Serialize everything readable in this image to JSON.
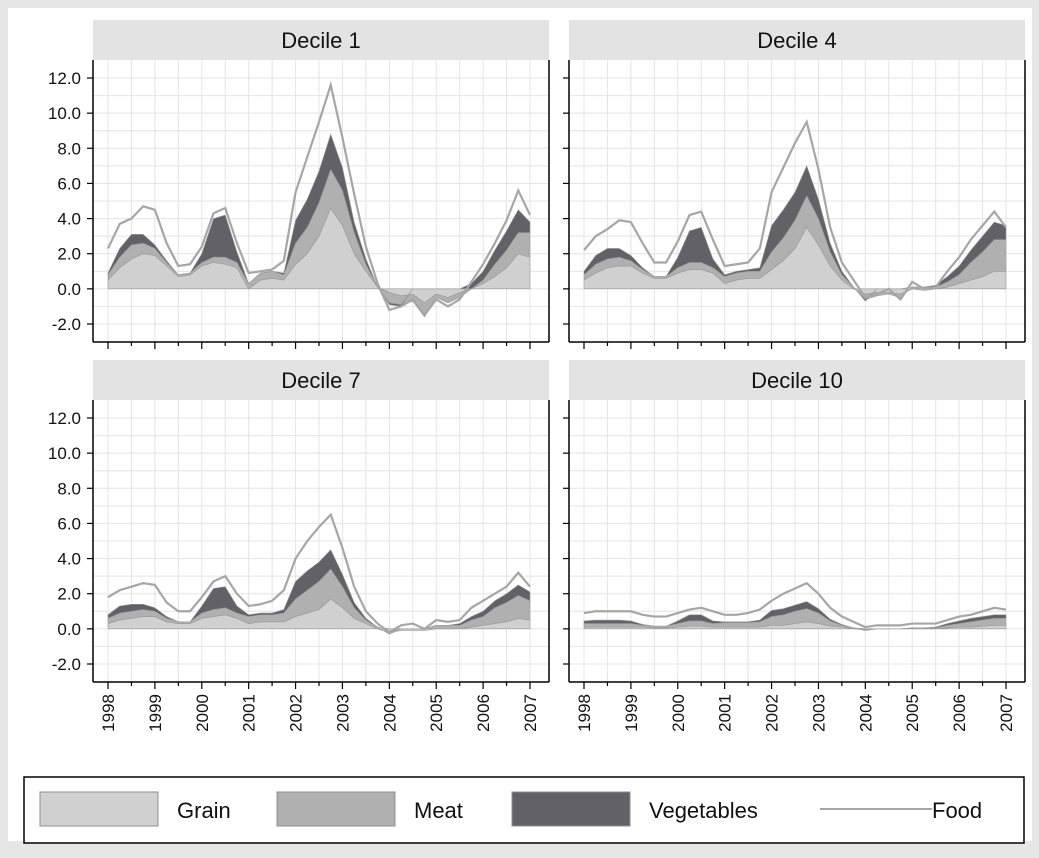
{
  "chart_data": {
    "type": "area",
    "layout": "2x2 small multiples",
    "x": [
      1998.0,
      1998.25,
      1998.5,
      1998.75,
      1999.0,
      1999.25,
      1999.5,
      1999.75,
      2000.0,
      2000.25,
      2000.5,
      2000.75,
      2001.0,
      2001.25,
      2001.5,
      2001.75,
      2002.0,
      2002.25,
      2002.5,
      2002.75,
      2003.0,
      2003.25,
      2003.5,
      2003.75,
      2004.0,
      2004.25,
      2004.5,
      2004.75,
      2005.0,
      2005.25,
      2005.5,
      2005.75,
      2006.0,
      2006.25,
      2006.5,
      2006.75,
      2007.0
    ],
    "xlim": [
      1998,
      2007
    ],
    "ylim": [
      -2,
      12
    ],
    "x_tick_labels": [
      "1998",
      "1999",
      "2000",
      "2001",
      "2002",
      "2003",
      "2004",
      "2005",
      "2006",
      "2007"
    ],
    "y_tick_labels": [
      "12.0",
      "10.0",
      "8.0",
      "6.0",
      "4.0",
      "2.0",
      "0.0",
      "-2.0"
    ],
    "grid": true,
    "legend_position": "bottom",
    "legend": [
      {
        "name": "Grain",
        "kind": "area",
        "color": "#d0d0d0"
      },
      {
        "name": "Meat",
        "kind": "area",
        "color": "#b0b0b0"
      },
      {
        "name": "Vegetables",
        "kind": "area",
        "color": "#626266"
      },
      {
        "name": "Food",
        "kind": "line",
        "color": "#a6a6a6"
      }
    ],
    "panels": [
      {
        "title": "Decile 1",
        "series": [
          {
            "name": "Grain",
            "values": [
              0.5,
              1.2,
              1.7,
              2.0,
              1.9,
              1.3,
              0.7,
              0.8,
              1.3,
              1.5,
              1.4,
              1.2,
              0.0,
              0.5,
              0.6,
              0.5,
              1.4,
              2.0,
              3.0,
              4.6,
              3.6,
              2.0,
              1.0,
              0.1,
              -0.2,
              -0.4,
              -0.3,
              -0.8,
              -0.3,
              -0.5,
              -0.2,
              0.0,
              0.3,
              0.7,
              1.2,
              2.0,
              1.8
            ]
          },
          {
            "name": "Meat",
            "values": [
              0.3,
              0.6,
              0.8,
              0.6,
              0.4,
              0.2,
              0.1,
              0.1,
              0.2,
              0.3,
              0.4,
              0.3,
              0.3,
              0.4,
              0.4,
              0.3,
              1.2,
              1.5,
              1.9,
              2.2,
              2.0,
              1.2,
              0.4,
              0.0,
              -0.6,
              -0.5,
              -0.4,
              -0.8,
              -0.2,
              -0.3,
              -0.3,
              0.0,
              0.2,
              0.7,
              1.0,
              1.2,
              1.4
            ]
          },
          {
            "name": "Vegetables",
            "values": [
              0.1,
              0.5,
              0.6,
              0.5,
              0.2,
              0.1,
              0.0,
              0.0,
              0.5,
              2.2,
              2.4,
              0.6,
              0.0,
              0.0,
              0.0,
              0.1,
              1.3,
              1.6,
              1.8,
              2.0,
              1.3,
              0.6,
              0.3,
              0.0,
              -0.1,
              -0.1,
              0.0,
              0.0,
              0.0,
              0.0,
              0.0,
              0.3,
              0.5,
              0.8,
              1.1,
              1.3,
              0.6
            ]
          },
          {
            "name": "Food",
            "values": [
              2.3,
              3.7,
              4.0,
              4.7,
              4.5,
              2.6,
              1.3,
              1.4,
              2.4,
              4.3,
              4.6,
              2.6,
              0.9,
              1.0,
              1.1,
              1.6,
              5.5,
              7.5,
              9.5,
              11.6,
              8.6,
              5.4,
              2.4,
              0.3,
              -1.2,
              -1.0,
              -0.6,
              -1.5,
              -0.6,
              -1.0,
              -0.6,
              0.4,
              1.4,
              2.6,
              3.9,
              5.6,
              4.2
            ]
          }
        ]
      },
      {
        "title": "Decile 4",
        "series": [
          {
            "name": "Grain",
            "values": [
              0.5,
              0.9,
              1.2,
              1.3,
              1.3,
              0.9,
              0.6,
              0.6,
              0.9,
              1.1,
              1.1,
              0.9,
              0.3,
              0.5,
              0.6,
              0.6,
              1.1,
              1.6,
              2.3,
              3.5,
              2.5,
              1.3,
              0.5,
              0.0,
              -0.3,
              -0.2,
              -0.2,
              -0.3,
              0.0,
              -0.1,
              0.0,
              0.1,
              0.3,
              0.5,
              0.7,
              1.0,
              1.0
            ]
          },
          {
            "name": "Meat",
            "values": [
              0.3,
              0.5,
              0.5,
              0.5,
              0.3,
              0.2,
              0.1,
              0.1,
              0.3,
              0.4,
              0.4,
              0.3,
              0.4,
              0.4,
              0.4,
              0.4,
              1.0,
              1.3,
              1.6,
              1.8,
              1.5,
              0.8,
              0.3,
              0.1,
              -0.3,
              -0.2,
              -0.1,
              -0.2,
              0.1,
              0.1,
              0.1,
              0.3,
              0.5,
              1.0,
              1.4,
              1.8,
              1.8
            ]
          },
          {
            "name": "Vegetables",
            "values": [
              0.2,
              0.5,
              0.6,
              0.5,
              0.3,
              0.1,
              0.0,
              0.0,
              0.6,
              1.8,
              2.0,
              0.5,
              0.1,
              0.1,
              0.1,
              0.2,
              1.5,
              1.6,
              1.6,
              1.7,
              1.1,
              0.5,
              0.2,
              0.0,
              -0.1,
              0.0,
              0.0,
              0.0,
              0.0,
              0.0,
              0.1,
              0.3,
              0.5,
              0.7,
              0.9,
              1.0,
              0.8
            ]
          },
          {
            "name": "Food",
            "values": [
              2.2,
              3.0,
              3.4,
              3.9,
              3.8,
              2.6,
              1.5,
              1.5,
              2.7,
              4.2,
              4.4,
              2.8,
              1.3,
              1.4,
              1.5,
              2.3,
              5.5,
              6.9,
              8.3,
              9.5,
              6.8,
              3.5,
              1.5,
              0.5,
              -0.5,
              -0.3,
              0.0,
              -0.6,
              0.4,
              0.0,
              0.1,
              1.0,
              1.8,
              2.8,
              3.6,
              4.4,
              3.5
            ]
          }
        ]
      },
      {
        "title": "Decile 7",
        "series": [
          {
            "name": "Grain",
            "values": [
              0.3,
              0.5,
              0.6,
              0.7,
              0.7,
              0.4,
              0.3,
              0.3,
              0.6,
              0.7,
              0.8,
              0.6,
              0.3,
              0.4,
              0.4,
              0.4,
              0.7,
              0.9,
              1.1,
              1.7,
              1.2,
              0.6,
              0.3,
              0.0,
              -0.2,
              -0.1,
              -0.1,
              -0.1,
              0.0,
              0.0,
              0.0,
              0.1,
              0.2,
              0.3,
              0.4,
              0.6,
              0.5
            ]
          },
          {
            "name": "Meat",
            "values": [
              0.3,
              0.4,
              0.4,
              0.4,
              0.3,
              0.2,
              0.1,
              0.1,
              0.3,
              0.4,
              0.4,
              0.3,
              0.4,
              0.4,
              0.4,
              0.5,
              1.0,
              1.3,
              1.6,
              1.7,
              1.2,
              0.6,
              0.2,
              0.1,
              -0.1,
              0.0,
              0.0,
              0.0,
              0.2,
              0.2,
              0.2,
              0.4,
              0.5,
              0.9,
              1.1,
              1.3,
              1.1
            ]
          },
          {
            "name": "Vegetables",
            "values": [
              0.2,
              0.4,
              0.4,
              0.3,
              0.2,
              0.1,
              0.0,
              0.0,
              0.4,
              1.2,
              1.2,
              0.4,
              0.1,
              0.1,
              0.1,
              0.2,
              1.0,
              1.1,
              1.1,
              1.1,
              0.7,
              0.3,
              0.1,
              0.0,
              0.0,
              0.0,
              0.0,
              0.0,
              0.0,
              0.0,
              0.1,
              0.2,
              0.3,
              0.4,
              0.5,
              0.6,
              0.5
            ]
          },
          {
            "name": "Food",
            "values": [
              1.8,
              2.2,
              2.4,
              2.6,
              2.5,
              1.5,
              1.0,
              1.0,
              1.8,
              2.7,
              3.0,
              2.0,
              1.3,
              1.4,
              1.6,
              2.2,
              4.0,
              5.0,
              5.8,
              6.5,
              4.6,
              2.4,
              1.0,
              0.3,
              -0.2,
              0.2,
              0.3,
              0.0,
              0.5,
              0.4,
              0.5,
              1.2,
              1.6,
              2.0,
              2.4,
              3.2,
              2.4
            ]
          }
        ]
      },
      {
        "title": "Decile 10",
        "series": [
          {
            "name": "Grain",
            "values": [
              0.1,
              0.1,
              0.1,
              0.1,
              0.1,
              0.1,
              0.05,
              0.05,
              0.1,
              0.15,
              0.15,
              0.1,
              0.1,
              0.1,
              0.1,
              0.1,
              0.2,
              0.2,
              0.3,
              0.4,
              0.3,
              0.15,
              0.1,
              0.0,
              -0.05,
              0.0,
              0.0,
              0.0,
              0.0,
              0.0,
              0.0,
              0.05,
              0.1,
              0.1,
              0.15,
              0.2,
              0.2
            ]
          },
          {
            "name": "Meat",
            "values": [
              0.2,
              0.2,
              0.2,
              0.2,
              0.2,
              0.1,
              0.1,
              0.1,
              0.2,
              0.3,
              0.3,
              0.2,
              0.25,
              0.25,
              0.25,
              0.3,
              0.5,
              0.6,
              0.7,
              0.75,
              0.6,
              0.3,
              0.1,
              0.05,
              -0.05,
              0.0,
              0.0,
              0.0,
              0.05,
              0.05,
              0.05,
              0.15,
              0.2,
              0.3,
              0.35,
              0.4,
              0.4
            ]
          },
          {
            "name": "Vegetables",
            "values": [
              0.15,
              0.2,
              0.2,
              0.2,
              0.15,
              0.05,
              0.0,
              0.0,
              0.15,
              0.35,
              0.35,
              0.15,
              0.05,
              0.05,
              0.05,
              0.1,
              0.35,
              0.35,
              0.35,
              0.4,
              0.25,
              0.1,
              0.05,
              0.0,
              0.0,
              0.0,
              0.0,
              0.0,
              0.0,
              0.0,
              0.05,
              0.1,
              0.15,
              0.2,
              0.2,
              0.2,
              0.2
            ]
          },
          {
            "name": "Food",
            "values": [
              0.9,
              1.0,
              1.0,
              1.0,
              1.0,
              0.8,
              0.7,
              0.7,
              0.9,
              1.1,
              1.2,
              1.0,
              0.8,
              0.8,
              0.9,
              1.1,
              1.6,
              2.0,
              2.3,
              2.6,
              2.0,
              1.2,
              0.7,
              0.4,
              0.1,
              0.2,
              0.2,
              0.2,
              0.3,
              0.3,
              0.3,
              0.5,
              0.7,
              0.8,
              1.0,
              1.2,
              1.1
            ]
          }
        ]
      }
    ]
  }
}
